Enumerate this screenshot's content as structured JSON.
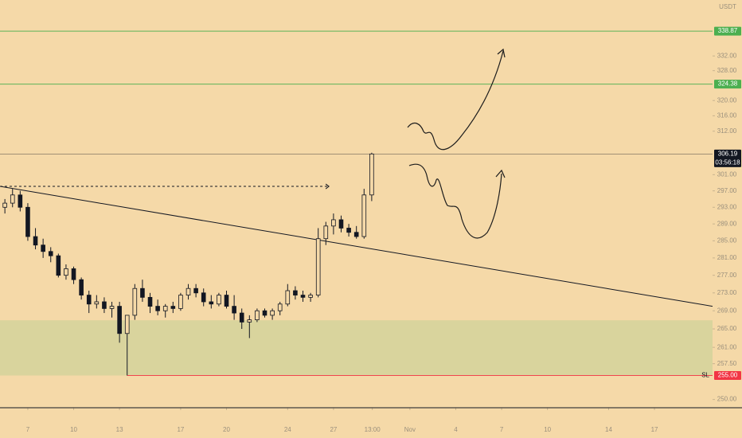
{
  "chart_data": {
    "type": "candlestick",
    "unit": "USDT",
    "log_scale": true,
    "xlim": [
      5.18,
      51.8
    ],
    "ylim": [
      248.3,
      347.7
    ],
    "xticks": [
      7,
      10,
      13,
      17,
      20,
      24,
      27,
      {
        "value": 29.54,
        "label": "13:00"
      },
      {
        "value": 32,
        "label": "Nov"
      },
      {
        "value": 35,
        "label": "4"
      },
      {
        "value": 38,
        "label": "7"
      },
      {
        "value": 41,
        "label": "10"
      },
      {
        "value": 45,
        "label": "14"
      },
      {
        "value": 48,
        "label": "17"
      }
    ],
    "yticks": [
      {
        "value": 332,
        "label": "332.00"
      },
      {
        "value": 328,
        "label": "328.00"
      },
      {
        "value": 320,
        "label": "320.00"
      },
      {
        "value": 316,
        "label": "316.00"
      },
      {
        "value": 312,
        "label": "312.00"
      },
      {
        "value": 301,
        "label": "301.00"
      },
      {
        "value": 297,
        "label": "297.00"
      },
      {
        "value": 293,
        "label": "293.00"
      },
      {
        "value": 289,
        "label": "289.00"
      },
      {
        "value": 285,
        "label": "285.00"
      },
      {
        "value": 281,
        "label": "281.00"
      },
      {
        "value": 277,
        "label": "277.00"
      },
      {
        "value": 273,
        "label": "273.00"
      },
      {
        "value": 269,
        "label": "269.00"
      },
      {
        "value": 265,
        "label": "265.00"
      },
      {
        "value": 261,
        "label": "261.00"
      },
      {
        "value": 257.5,
        "label": "257.50"
      },
      {
        "value": 250,
        "label": "250.00"
      }
    ],
    "candle_color": "#131722",
    "x": [
      5.5,
      6,
      6.5,
      7,
      7.5,
      8,
      8.5,
      9,
      9.5,
      10,
      10.5,
      11,
      11.5,
      12,
      12.5,
      13,
      13.5,
      14,
      14.5,
      15,
      15.5,
      16,
      16.5,
      17,
      17.5,
      18,
      18.5,
      19,
      19.5,
      20,
      20.5,
      21,
      21.5,
      22,
      22.5,
      23,
      23.5,
      24,
      24.5,
      25,
      25.5,
      26,
      26.5,
      27,
      27.5,
      28,
      28.5,
      29,
      29.5
    ],
    "open": [
      293,
      294,
      296,
      293,
      286,
      284,
      282.5,
      281.5,
      277,
      278.5,
      276,
      272.5,
      270.5,
      271,
      269.5,
      270,
      264,
      268,
      274,
      272,
      270,
      269,
      270,
      269.5,
      272.5,
      274,
      273,
      271,
      270.5,
      272.5,
      270,
      268.5,
      266.5,
      267,
      269,
      268,
      269,
      270.5,
      273.5,
      272.5,
      272,
      272.5,
      285.5,
      288.5,
      290,
      288,
      287,
      286,
      296
    ],
    "high": [
      295,
      297.5,
      297,
      294,
      288,
      285.5,
      283.5,
      282,
      279.5,
      279,
      276.5,
      273.5,
      272.5,
      272,
      271,
      271,
      268,
      275,
      276,
      273,
      271.5,
      270.5,
      271,
      273,
      275,
      275,
      274,
      272.5,
      273,
      273.5,
      272.5,
      269.5,
      268,
      269.5,
      269.5,
      269.5,
      271,
      275,
      274.5,
      273.5,
      273,
      288,
      289.5,
      291.5,
      291,
      289,
      288.5,
      297.5,
      306.5
    ],
    "low": [
      291.5,
      293,
      292,
      285,
      283,
      281,
      280,
      276.5,
      276,
      275,
      271.5,
      268.5,
      269.5,
      268.5,
      267.5,
      262,
      255,
      267,
      271,
      268.5,
      268,
      267.5,
      268.5,
      269,
      271.5,
      272,
      270,
      269.5,
      270,
      269.5,
      267,
      265,
      263,
      266.5,
      267.5,
      267,
      268,
      270,
      271.5,
      271,
      271,
      272,
      284,
      286.5,
      287,
      286,
      285.5,
      285.5,
      294.5
    ],
    "close": [
      294,
      296,
      293,
      286,
      284,
      282.5,
      281.5,
      277,
      278.5,
      276,
      272.5,
      270.5,
      271,
      269.5,
      270,
      264,
      268,
      274,
      272,
      270,
      269,
      270,
      269.5,
      272.5,
      274,
      273,
      271,
      270.5,
      272.5,
      270,
      268.5,
      266.5,
      267,
      269,
      268,
      269,
      270.5,
      273.5,
      272.5,
      272,
      272.5,
      285.5,
      288.5,
      290,
      288,
      287,
      286,
      296,
      306.19
    ],
    "levels": [
      {
        "value": 338.87,
        "color": "#4caf50"
      },
      {
        "value": 324.38,
        "color": "#4caf50"
      },
      {
        "value": 306.19,
        "color": "#131722",
        "countdown": "03:56:18"
      },
      {
        "value": 255,
        "label": "255.00",
        "color": "#f23645",
        "name": "SL",
        "from": 13.5
      }
    ],
    "zone": {
      "range": [
        255,
        266.9
      ],
      "color": "#d3d29b"
    },
    "trendline": {
      "from": [
        5.18,
        298.1
      ],
      "to": [
        51.8,
        270
      ]
    },
    "dashed_line": {
      "value": 298.1,
      "from": 5.18,
      "to": 26.7
    }
  }
}
